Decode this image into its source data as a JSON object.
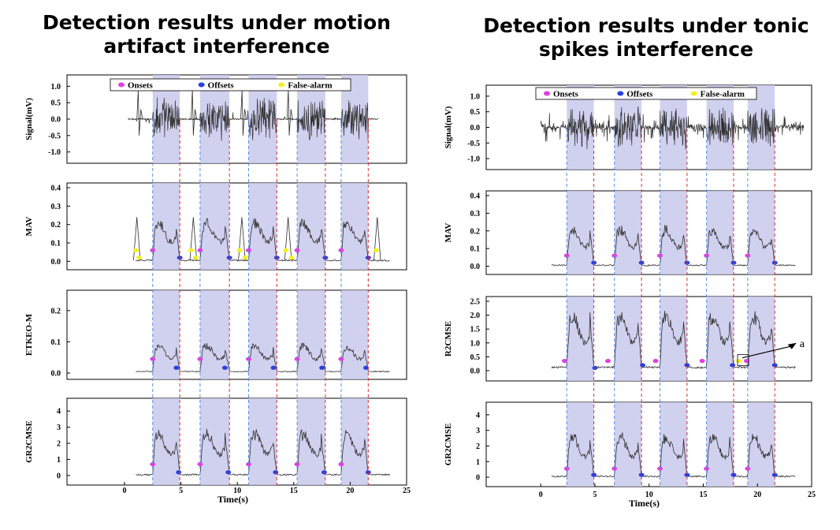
{
  "titles": {
    "left": "Detection results under motion artifact interference",
    "right": "Detection results under tonic spikes interference"
  },
  "legend": {
    "onsets": "Onsets",
    "offsets": "Offsets",
    "false_alarm": "False-alarm"
  },
  "colors": {
    "onset": "#e040e0",
    "offset": "#2a40e0",
    "false_alarm": "#f4f020",
    "band": "#c8c8ec",
    "onset_line": "#5a8ee0",
    "offset_line": "#d83030",
    "trace": "#303030"
  },
  "chart_data": [
    {
      "type": "line",
      "title": "Detection results under motion artifact interference",
      "xlabel": "Time(s)",
      "xlim": [
        -3,
        25
      ],
      "xticks": [
        "0",
        "5",
        "10",
        "15",
        "20",
        "25"
      ],
      "active_segments": [
        [
          2.5,
          4.9
        ],
        [
          6.7,
          9.3
        ],
        [
          11.0,
          13.5
        ],
        [
          15.3,
          17.8
        ],
        [
          19.2,
          21.6
        ]
      ],
      "panels": [
        {
          "ylabel": "Signal(mV)",
          "ylim": [
            -1.2,
            1.2
          ],
          "yticks": [
            "1.0",
            "0.5",
            "0.0",
            "-0.5",
            "-1.0"
          ],
          "legend": true,
          "onsets": [],
          "offsets": [],
          "false_alarms": []
        },
        {
          "ylabel": "MAV",
          "ylim": [
            -0.02,
            0.4
          ],
          "yticks": [
            "0.4",
            "0.3",
            "0.2",
            "0.1",
            "0.0"
          ],
          "onsets": [
            [
              2.5,
              0.06
            ],
            [
              6.7,
              0.06
            ],
            [
              11.0,
              0.06
            ],
            [
              15.3,
              0.06
            ],
            [
              19.2,
              0.06
            ]
          ],
          "offsets": [
            [
              4.9,
              0.02
            ],
            [
              9.3,
              0.02
            ],
            [
              13.5,
              0.02
            ],
            [
              17.8,
              0.02
            ],
            [
              21.6,
              0.02
            ]
          ],
          "false_alarms": [
            [
              1.0,
              0.06
            ],
            [
              1.3,
              0.02
            ],
            [
              5.9,
              0.06
            ],
            [
              6.3,
              0.02
            ],
            [
              10.2,
              0.06
            ],
            [
              10.7,
              0.02
            ],
            [
              14.3,
              0.06
            ],
            [
              14.8,
              0.02
            ],
            [
              22.3,
              0.06
            ]
          ]
        },
        {
          "ylabel": "ETKEO-M",
          "ylim": [
            -0.005,
            0.25
          ],
          "yticks": [
            "0.2",
            "0.1",
            "0.0"
          ],
          "onsets": [
            [
              2.5,
              0.045
            ],
            [
              6.7,
              0.045
            ],
            [
              11.0,
              0.045
            ],
            [
              15.3,
              0.045
            ],
            [
              19.2,
              0.045
            ]
          ],
          "offsets": [
            [
              4.6,
              0.017
            ],
            [
              8.9,
              0.017
            ],
            [
              13.2,
              0.017
            ],
            [
              17.5,
              0.017
            ],
            [
              21.4,
              0.017
            ]
          ],
          "false_alarms": []
        },
        {
          "ylabel": "GR2CMSE",
          "ylim": [
            -0.3,
            4.5
          ],
          "yticks": [
            "4",
            "3",
            "2",
            "1",
            "0"
          ],
          "onsets": [
            [
              2.5,
              0.7
            ],
            [
              6.7,
              0.7
            ],
            [
              11.0,
              0.7
            ],
            [
              15.3,
              0.7
            ],
            [
              19.2,
              0.7
            ]
          ],
          "offsets": [
            [
              4.8,
              0.2
            ],
            [
              9.2,
              0.2
            ],
            [
              13.4,
              0.2
            ],
            [
              17.7,
              0.2
            ],
            [
              21.6,
              0.2
            ]
          ],
          "false_alarms": []
        }
      ]
    },
    {
      "type": "line",
      "title": "Detection results under tonic spikes interference",
      "xlabel": "Time(s)",
      "xlim": [
        -3,
        25
      ],
      "xticks": [
        "0",
        "5",
        "10",
        "15",
        "20",
        "25"
      ],
      "active_segments": [
        [
          2.4,
          4.9
        ],
        [
          6.8,
          9.3
        ],
        [
          11.0,
          13.5
        ],
        [
          15.3,
          17.8
        ],
        [
          19.1,
          21.6
        ]
      ],
      "panels": [
        {
          "ylabel": "Signal(mV)",
          "ylim": [
            -1.2,
            1.2
          ],
          "yticks": [
            "1.0",
            "0.5",
            "0.0",
            "-0.5",
            "-1.0"
          ],
          "legend": true,
          "onsets": [],
          "offsets": [],
          "false_alarms": []
        },
        {
          "ylabel": "MAV",
          "ylim": [
            -0.02,
            0.4
          ],
          "yticks": [
            "0.4",
            "0.3",
            "0.2",
            "0.1",
            "0.0"
          ],
          "onsets": [
            [
              2.4,
              0.06
            ],
            [
              6.8,
              0.06
            ],
            [
              11.0,
              0.06
            ],
            [
              15.3,
              0.06
            ],
            [
              19.1,
              0.06
            ]
          ],
          "offsets": [
            [
              4.9,
              0.02
            ],
            [
              9.3,
              0.02
            ],
            [
              13.5,
              0.02
            ],
            [
              17.8,
              0.02
            ],
            [
              21.6,
              0.02
            ]
          ],
          "false_alarms": []
        },
        {
          "ylabel": "R2CMSE",
          "ylim": [
            -0.2,
            2.5
          ],
          "yticks": [
            "2.5",
            "2.0",
            "1.5",
            "1.0",
            "0.5",
            "0.0"
          ],
          "onsets": [
            [
              2.2,
              0.35
            ],
            [
              6.2,
              0.35
            ],
            [
              10.6,
              0.35
            ],
            [
              14.9,
              0.35
            ],
            [
              19.0,
              0.35
            ]
          ],
          "offsets": [
            [
              5.0,
              0.1
            ],
            [
              9.4,
              0.2
            ],
            [
              13.5,
              0.2
            ],
            [
              17.7,
              0.2
            ],
            [
              21.6,
              0.2
            ]
          ],
          "false_alarms": [
            [
              18.3,
              0.35
            ]
          ],
          "annotation": {
            "text": "a",
            "point": [
              18.6,
              0.35
            ],
            "label_at": [
              23.6,
              1.0
            ]
          }
        },
        {
          "ylabel": "GR2CMSE",
          "ylim": [
            -0.3,
            4.5
          ],
          "yticks": [
            "4",
            "3",
            "2",
            "1",
            "0"
          ],
          "onsets": [
            [
              2.4,
              0.55
            ],
            [
              6.8,
              0.55
            ],
            [
              11.0,
              0.55
            ],
            [
              15.3,
              0.55
            ],
            [
              19.1,
              0.55
            ]
          ],
          "offsets": [
            [
              4.9,
              0.15
            ],
            [
              9.3,
              0.15
            ],
            [
              13.5,
              0.15
            ],
            [
              17.8,
              0.15
            ],
            [
              21.6,
              0.15
            ]
          ],
          "false_alarms": []
        }
      ]
    }
  ]
}
